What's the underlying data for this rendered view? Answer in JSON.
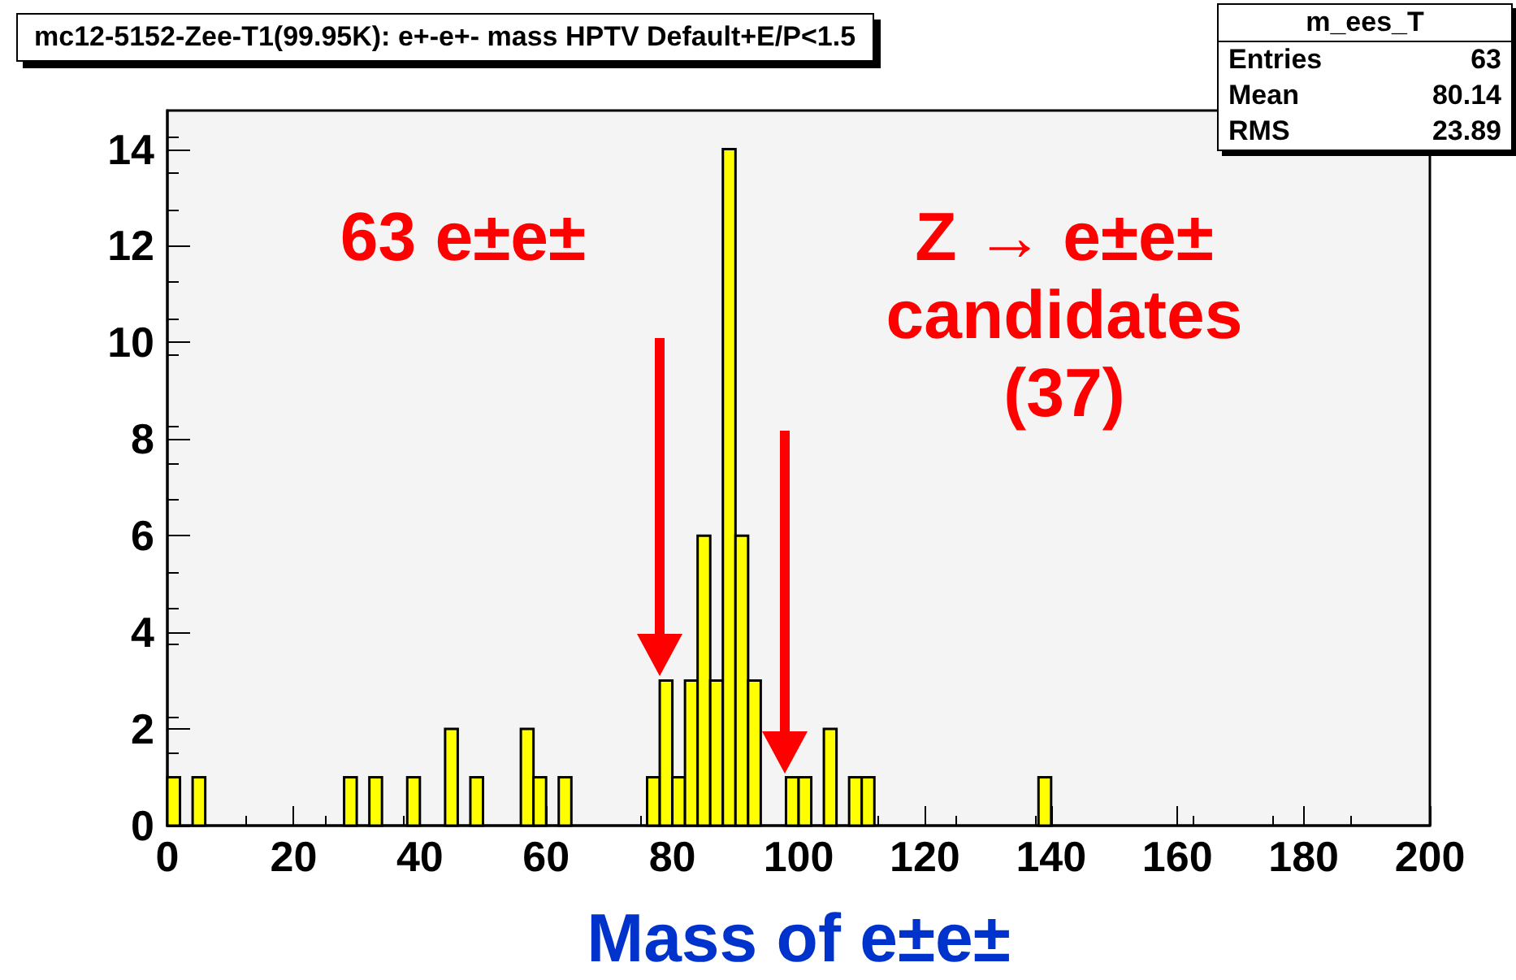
{
  "chart_data": {
    "type": "histogram",
    "title": "mc12-5152-Zee-T1(99.95K): e+-e+- mass HPTV Default+E/P<1.5",
    "xlabel": "Mass of e±e±",
    "bins": [
      0,
      2,
      4,
      6,
      8,
      10,
      12,
      14,
      16,
      18,
      20,
      22,
      24,
      26,
      28,
      30,
      32,
      34,
      36,
      38,
      40,
      42,
      44,
      46,
      48,
      50,
      52,
      54,
      56,
      58,
      60,
      62,
      64,
      66,
      68,
      70,
      72,
      74,
      76,
      78,
      80,
      82,
      84,
      86,
      88,
      90,
      92,
      94,
      96,
      98,
      100,
      102,
      104,
      106,
      108,
      110,
      112,
      114,
      116,
      118,
      120,
      122,
      124,
      126,
      128,
      130,
      132,
      134,
      136,
      138,
      140,
      142,
      144,
      146,
      148,
      150,
      152,
      154,
      156,
      158,
      160,
      162,
      164,
      166,
      168,
      170,
      172,
      174,
      176,
      178,
      180,
      182,
      184,
      186,
      188,
      190,
      192,
      194,
      196,
      198,
      200
    ],
    "values": [
      1,
      0,
      1,
      0,
      0,
      0,
      0,
      0,
      0,
      0,
      0,
      0,
      0,
      0,
      1,
      0,
      1,
      0,
      0,
      1,
      0,
      0,
      2,
      0,
      1,
      0,
      0,
      0,
      2,
      1,
      0,
      1,
      0,
      0,
      0,
      0,
      0,
      0,
      1,
      3,
      1,
      3,
      6,
      3,
      14,
      6,
      3,
      0,
      0,
      1,
      1,
      0,
      2,
      0,
      1,
      1,
      0,
      0,
      0,
      0,
      0,
      0,
      0,
      0,
      0,
      0,
      0,
      0,
      0,
      1,
      0,
      0,
      0,
      0,
      0,
      0,
      0,
      0,
      0,
      0,
      0,
      0,
      0,
      0,
      0,
      0,
      0,
      0,
      0,
      0,
      0,
      0,
      0,
      0,
      0,
      0,
      0,
      0,
      0,
      0
    ],
    "color": "#ffff00",
    "xlim": [
      0,
      200
    ],
    "xticks": [
      0,
      20,
      40,
      60,
      80,
      100,
      120,
      140,
      160,
      180,
      200
    ],
    "ylim": [
      0,
      14.8
    ],
    "yticks": [
      0,
      2,
      4,
      6,
      8,
      10,
      12,
      14
    ],
    "annotations": [
      "63 e±e±",
      "Z → e±e± candidates (37)",
      "m_ees_T",
      "Entries 63",
      "Mean 80.14",
      "RMS 23.89"
    ]
  }
}
